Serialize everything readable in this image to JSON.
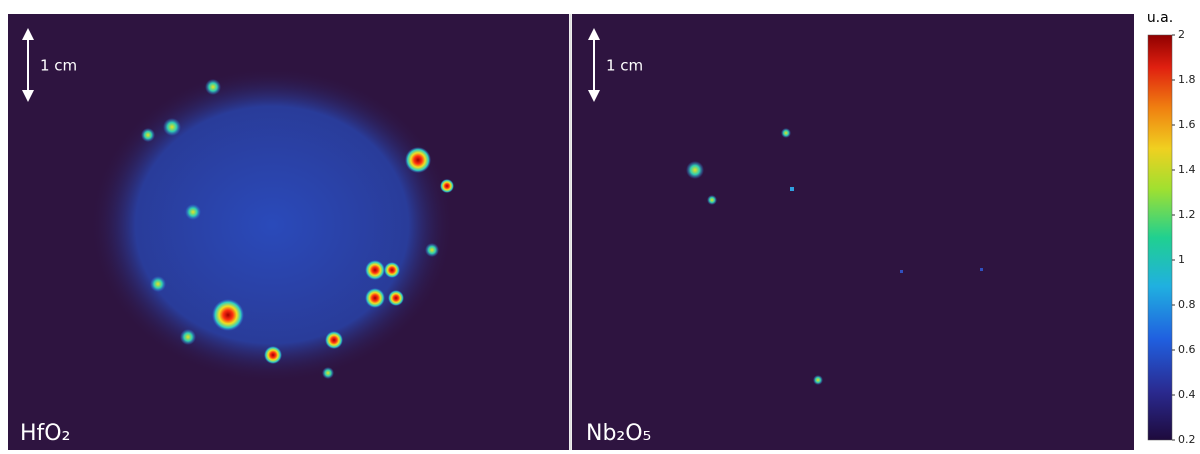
{
  "panels": [
    {
      "label": "HfO₂",
      "scale": "1 cm"
    },
    {
      "label": "Nb₂O₅",
      "scale": "1 cm"
    }
  ],
  "colorbar": {
    "label": "u.a.",
    "range": [
      0.2,
      2
    ],
    "ticks": [
      0.2,
      0.4,
      0.6,
      0.8,
      1,
      1.2,
      1.4,
      1.6,
      1.8,
      2
    ]
  }
}
